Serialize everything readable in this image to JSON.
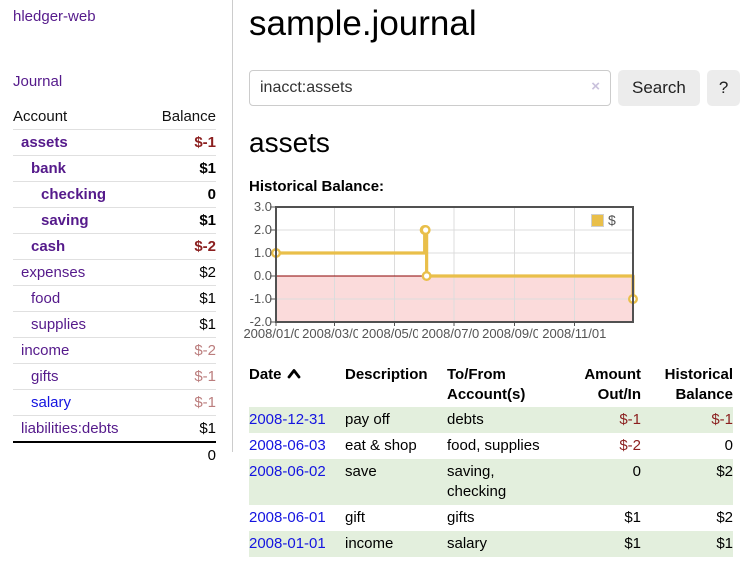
{
  "palette": {
    "purple": "#551a8b",
    "blue": "#1414e0",
    "neg-strong": "#8b1f1f",
    "neg-soft": "#bb7d7d",
    "row-green": "#e3efdd",
    "chart-gold": "#e9bf4a",
    "chart-pink": "#fbdbdb",
    "zero-red": "#8b0000"
  },
  "app_title": "hledger-web",
  "sidebar": {
    "journal_link": "Journal",
    "accounts": {
      "col_account": "Account",
      "col_balance": "Balance",
      "rows": [
        {
          "name": "assets",
          "balance": "$-1",
          "depth": 1,
          "bold": true,
          "balance_tone": "negative-strong"
        },
        {
          "name": "bank",
          "balance": "$1",
          "depth": 2,
          "bold": true,
          "balance_tone": "normal"
        },
        {
          "name": "checking",
          "balance": "0",
          "depth": 3,
          "bold": true,
          "balance_tone": "normal"
        },
        {
          "name": "saving",
          "balance": "$1",
          "depth": 3,
          "bold": true,
          "balance_tone": "normal"
        },
        {
          "name": "cash",
          "balance": "$-2",
          "depth": 2,
          "bold": true,
          "balance_tone": "negative-strong"
        },
        {
          "name": "expenses",
          "balance": "$2",
          "depth": 1,
          "bold": false,
          "balance_tone": "normal"
        },
        {
          "name": "food",
          "balance": "$1",
          "depth": 2,
          "bold": false,
          "balance_tone": "normal"
        },
        {
          "name": "supplies",
          "balance": "$1",
          "depth": 2,
          "bold": false,
          "balance_tone": "normal"
        },
        {
          "name": "income",
          "balance": "$-2",
          "depth": 1,
          "bold": false,
          "balance_tone": "negative-soft"
        },
        {
          "name": "gifts",
          "balance": "$-1",
          "depth": 2,
          "bold": false,
          "balance_tone": "negative-soft"
        },
        {
          "name": "salary",
          "balance": "$-1",
          "depth": 2,
          "bold": false,
          "balance_tone": "negative-soft",
          "link_tone": "blue"
        },
        {
          "name": "liabilities:debts",
          "balance": "$1",
          "depth": 1,
          "bold": false,
          "balance_tone": "normal"
        }
      ],
      "total": "0"
    }
  },
  "main": {
    "title": "sample.journal",
    "search": {
      "value": "inacct:assets",
      "clear_icon": "×",
      "search_button": "Search",
      "help_button": "?"
    },
    "account_heading": "assets",
    "chart_heading": "Historical Balance:"
  },
  "chart_data": {
    "type": "line",
    "step": true,
    "title": "Historical Balance",
    "x_start": "2008-01-01",
    "x_end": "2008-12-31",
    "series": [
      {
        "name": "$",
        "color": "#e9bf4a",
        "points": [
          {
            "date": "2008-01-01",
            "value": 1
          },
          {
            "date": "2008-06-01",
            "value": 2
          },
          {
            "date": "2008-06-02",
            "value": 2
          },
          {
            "date": "2008-06-03",
            "value": 0
          },
          {
            "date": "2008-12-31",
            "value": -1
          }
        ]
      }
    ],
    "x_ticks": [
      {
        "date": "2008-01-01",
        "label": "2008/01/01"
      },
      {
        "date": "2008-03-01",
        "label": "2008/03/01"
      },
      {
        "date": "2008-05-01",
        "label": "2008/05/01"
      },
      {
        "date": "2008-07-01",
        "label": "2008/07/01"
      },
      {
        "date": "2008-09-01",
        "label": "2008/09/01"
      },
      {
        "date": "2008-11-01",
        "label": "2008/11/01"
      }
    ],
    "y_ticks": [
      {
        "value": 3,
        "label": "3.0"
      },
      {
        "value": 2,
        "label": "2.0"
      },
      {
        "value": 1,
        "label": "1.0"
      },
      {
        "value": 0,
        "label": "0.0"
      },
      {
        "value": -1,
        "label": "-1.0"
      },
      {
        "value": -2,
        "label": "-2.0"
      }
    ],
    "ylim": [
      -2,
      3
    ],
    "grid": true,
    "legend": {
      "label": "$",
      "position": "top-right"
    },
    "zero_line_color": "#8b0000",
    "negative_fill": "#fbdbdb"
  },
  "register": {
    "headers": {
      "date": "Date",
      "description": "Description",
      "account": "To/From Account(s)",
      "amount": "Amount Out/In",
      "balance": "Historical Balance"
    },
    "sort_dir": "asc",
    "rows": [
      {
        "date": "2008-12-31",
        "description": "pay off",
        "accounts": "debts",
        "amount": "$-1",
        "amount_negative": true,
        "balance": "$-1",
        "balance_negative": true
      },
      {
        "date": "2008-06-03",
        "description": "eat & shop",
        "accounts": "food, supplies",
        "amount": "$-2",
        "amount_negative": true,
        "balance": "0",
        "balance_negative": false
      },
      {
        "date": "2008-06-02",
        "description": "save",
        "accounts": "saving, checking",
        "amount": "0",
        "amount_negative": false,
        "balance": "$2",
        "balance_negative": false
      },
      {
        "date": "2008-06-01",
        "description": "gift",
        "accounts": "gifts",
        "amount": "$1",
        "amount_negative": false,
        "balance": "$2",
        "balance_negative": false
      },
      {
        "date": "2008-01-01",
        "description": "income",
        "accounts": "salary",
        "amount": "$1",
        "amount_negative": false,
        "balance": "$1",
        "balance_negative": false
      }
    ]
  }
}
